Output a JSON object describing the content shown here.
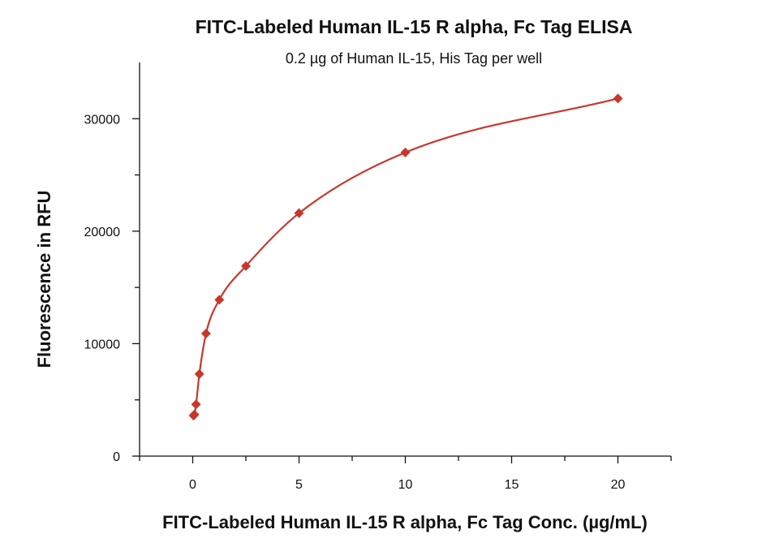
{
  "chart_data": {
    "type": "scatter",
    "title": "FITC-Labeled Human IL-15 R alpha, Fc Tag ELISA",
    "subtitle": "0.2 µg of Human IL-15, His Tag per well",
    "xlabel": "FITC-Labeled Human IL-15 R alpha, Fc Tag Conc. (µg/mL)",
    "ylabel": "Fluorescence in RFU",
    "xlim": [
      -2.5,
      22.5
    ],
    "ylim": [
      0,
      35000
    ],
    "x_ticks": [
      0,
      5,
      10,
      15,
      20
    ],
    "y_ticks": [
      0,
      10000,
      20000,
      30000
    ],
    "x_minor_ticks": [
      -2.5,
      2.5,
      7.5,
      12.5,
      17.5,
      22.5
    ],
    "y_minor_ticks": [
      5000,
      15000,
      25000
    ],
    "grid": false,
    "legend": "none",
    "series": [
      {
        "x": [
          0.039,
          0.078,
          0.156,
          0.3125,
          0.625,
          1.25,
          2.5,
          5,
          10,
          20
        ],
        "y": [
          3600,
          3700,
          4600,
          7300,
          10900,
          13900,
          16900,
          21600,
          27000,
          31800
        ],
        "fit_curve": "4-parameter logistic",
        "marker": "diamond"
      }
    ],
    "colors": {
      "series": "#c8372d",
      "axis": "#111111"
    }
  }
}
